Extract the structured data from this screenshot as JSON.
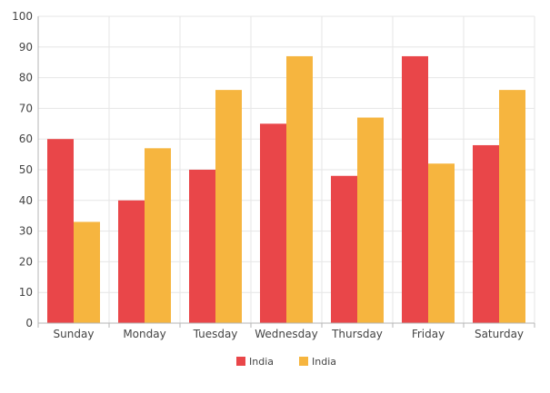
{
  "chart_data": {
    "type": "bar",
    "title": "",
    "xlabel": "",
    "ylabel": "",
    "categories": [
      "Sunday",
      "Monday",
      "Tuesday",
      "Wednesday",
      "Thursday",
      "Friday",
      "Saturday"
    ],
    "series": [
      {
        "name": "India",
        "color": "#E94649",
        "values": [
          60,
          40,
          50,
          65,
          48,
          87,
          58
        ]
      },
      {
        "name": "India",
        "color": "#F6B53F",
        "values": [
          33,
          57,
          76,
          87,
          67,
          52,
          76
        ]
      }
    ],
    "ylim": [
      0,
      100
    ],
    "yticks": [
      0,
      10,
      20,
      30,
      40,
      50,
      60,
      70,
      80,
      90,
      100
    ],
    "grid": true,
    "legend_position": "bottom-center"
  }
}
